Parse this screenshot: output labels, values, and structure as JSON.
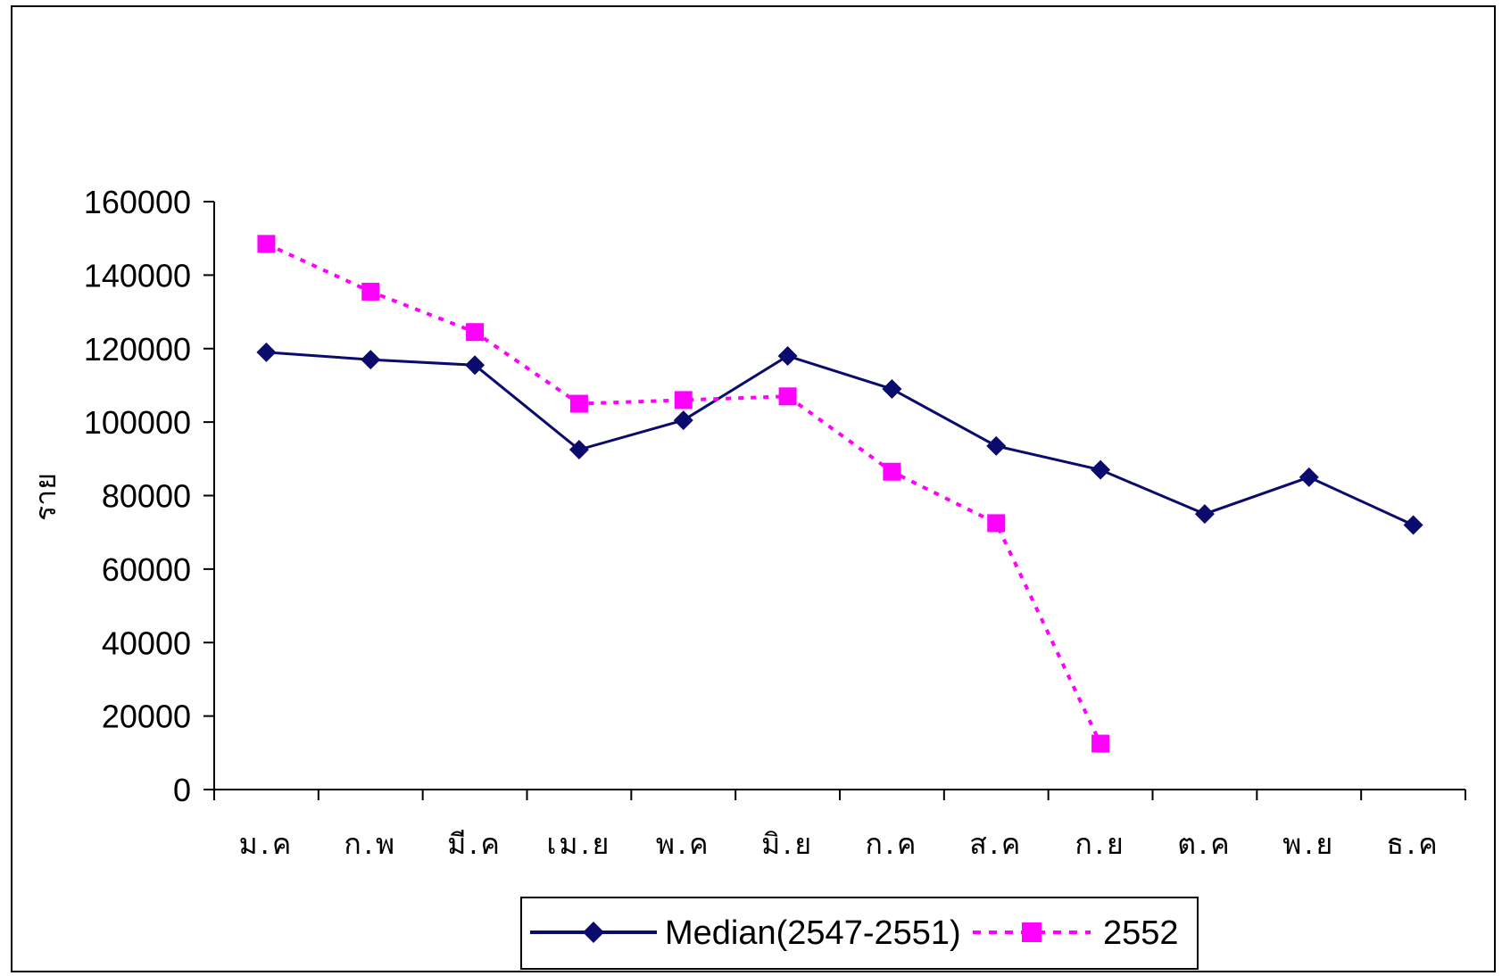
{
  "chart_data": {
    "type": "line",
    "title": "",
    "xlabel": "",
    "ylabel": "ราย",
    "ylim": [
      0,
      160000
    ],
    "yticks": [
      0,
      20000,
      40000,
      60000,
      80000,
      100000,
      120000,
      140000,
      160000
    ],
    "categories": [
      "ม.ค",
      "ก.พ",
      "มี.ค",
      "เม.ย",
      "พ.ค",
      "มิ.ย",
      "ก.ค",
      "ส.ค",
      "ก.ย",
      "ต.ค",
      "พ.ย",
      "ธ.ค"
    ],
    "series": [
      {
        "name": "Median(2547-2551)",
        "color": "#0b0b6e",
        "line_style": "solid",
        "marker": "diamond",
        "values": [
          119000,
          117000,
          115500,
          92500,
          100500,
          118000,
          109000,
          93500,
          87000,
          75000,
          85000,
          72000
        ]
      },
      {
        "name": "2552",
        "color": "#ff00ff",
        "line_style": "dotted",
        "marker": "square",
        "values": [
          148500,
          135500,
          124500,
          105000,
          106000,
          107000,
          86500,
          72500,
          12500,
          null,
          null,
          null
        ]
      }
    ],
    "legend_position": "bottom",
    "grid": false
  }
}
